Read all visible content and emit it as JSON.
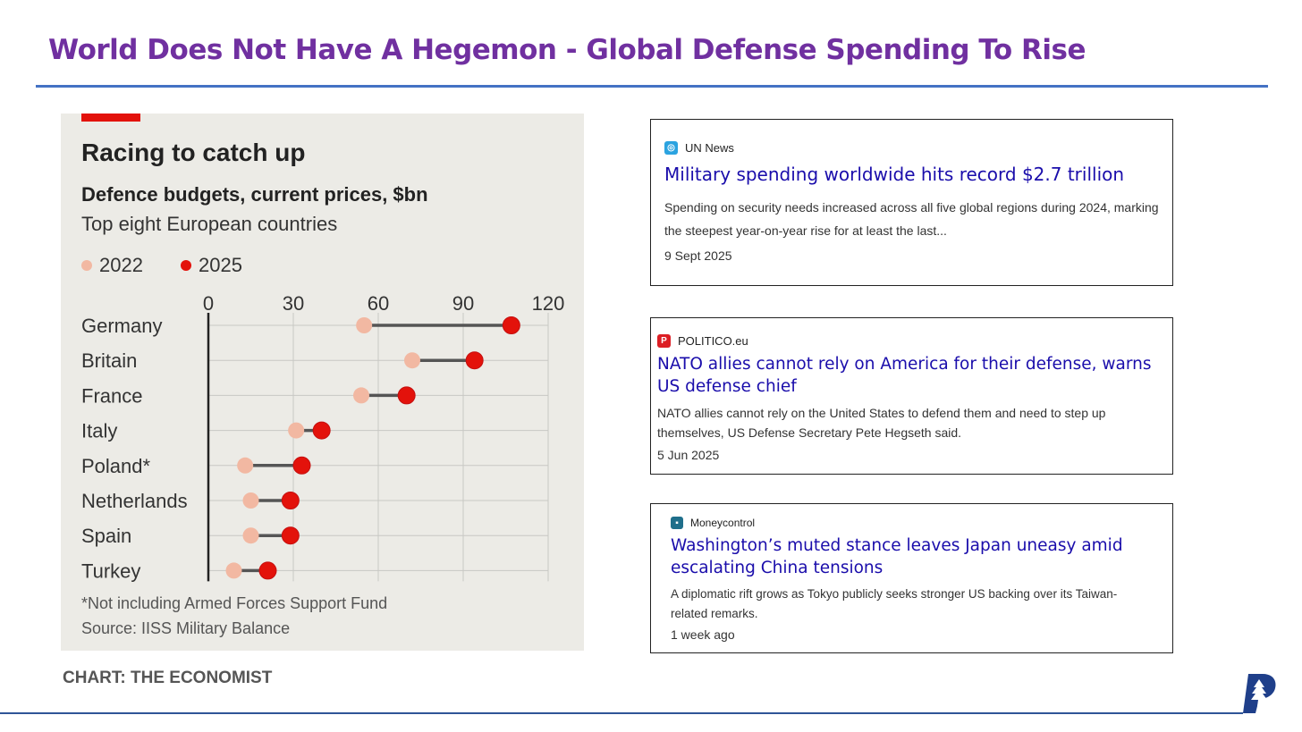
{
  "page_title": "World Does Not Have A Hegemon - Global Defense Spending To Rise",
  "chart_data": {
    "type": "dot",
    "title": "Racing to catch up",
    "subtitle": "Defence budgets, current prices, $bn",
    "subtitle2": "Top eight European countries",
    "legend": [
      "2022",
      "2025"
    ],
    "legend_placement": "top-left",
    "xlim": [
      0,
      120
    ],
    "xticks": [
      "0",
      "30",
      "60",
      "90",
      "120"
    ],
    "categories": [
      "Germany",
      "Britain",
      "France",
      "Italy",
      "Poland*",
      "Netherlands",
      "Spain",
      "Turkey"
    ],
    "series": [
      {
        "name": "2022",
        "color": "#f2b8a2",
        "values": [
          55,
          72,
          54,
          31,
          13,
          15,
          15,
          9
        ]
      },
      {
        "name": "2025",
        "color": "#e3120b",
        "values": [
          107,
          94,
          70,
          40,
          33,
          29,
          29,
          21
        ]
      }
    ],
    "footnote": "*Not including Armed Forces Support Fund",
    "source": "Source: IISS Military Balance",
    "credit": "CHART: THE ECONOMIST"
  },
  "news": [
    {
      "source": "UN News",
      "headline": "Military spending worldwide hits record $2.7 trillion",
      "desc": "Spending on security needs increased across all five global regions during 2024, marking the steepest year-on-year rise for at least the last...",
      "date": "9 Sept 2025",
      "icon_color": "#2ba3e0"
    },
    {
      "source": "POLITICO.eu",
      "headline": "NATO allies cannot rely on America for their defense, warns US defense chief",
      "desc": "NATO allies cannot rely on the United States to defend them and need to step up themselves, US Defense Secretary Pete Hegseth said.",
      "date": "5 Jun 2025",
      "icon_color": "#dc1e24",
      "icon_letter": "P"
    },
    {
      "source": "Moneycontrol",
      "headline": "Washington’s muted stance leaves Japan uneasy amid escalating China tensions",
      "desc": "A diplomatic rift grows as Tokyo publicly seeks stronger US backing over its Taiwan-related remarks.",
      "date": "1 week ago",
      "icon_color": "#1f6f8b"
    }
  ]
}
